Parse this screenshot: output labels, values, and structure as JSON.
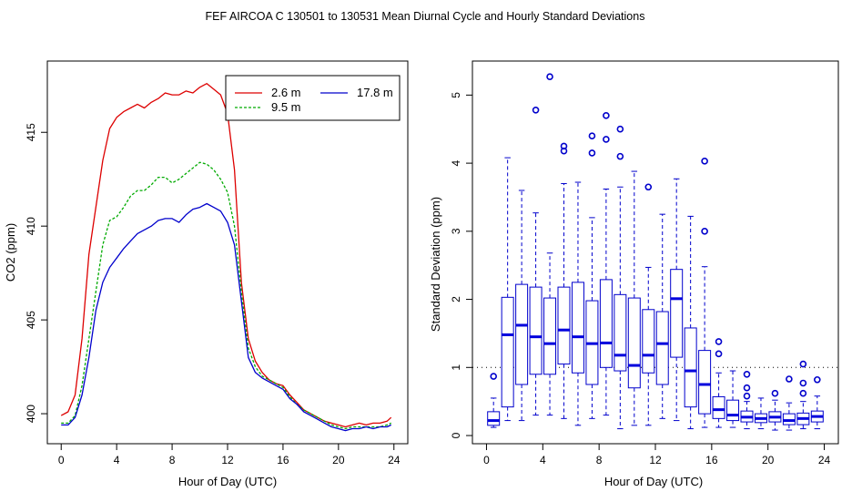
{
  "figure_title": "FEF   AIRCOA C   130501 to 130531   Mean Diurnal Cycle and Hourly Standard Deviations",
  "chart_data": [
    {
      "type": "line",
      "xlabel": "Hour of Day (UTC)",
      "ylabel": "CO2 (ppm)",
      "xlim": [
        -1,
        25
      ],
      "ylim": [
        398.4,
        418.8
      ],
      "xticks": [
        0,
        4,
        8,
        12,
        16,
        20,
        24
      ],
      "yticks": [
        400,
        405,
        410,
        415
      ],
      "legend_position": "top-right",
      "x": [
        0,
        0.5,
        1,
        1.5,
        2,
        2.5,
        3,
        3.5,
        4,
        4.5,
        5,
        5.5,
        6,
        6.5,
        7,
        7.5,
        8,
        8.5,
        9,
        9.5,
        10,
        10.5,
        11,
        11.5,
        12,
        12.5,
        13,
        13.5,
        14,
        14.5,
        15,
        15.5,
        16,
        16.5,
        17,
        17.5,
        18,
        18.5,
        19,
        19.5,
        20,
        20.5,
        21,
        21.5,
        22,
        22.5,
        23,
        23.5,
        23.8
      ],
      "series": [
        {
          "name": "2.6 m",
          "color": "#dd0000",
          "dash": "",
          "values": [
            399.9,
            400.1,
            401.0,
            404.0,
            408.5,
            411.0,
            413.5,
            415.2,
            415.8,
            416.1,
            416.3,
            416.5,
            416.3,
            416.6,
            416.8,
            417.1,
            417.0,
            417.0,
            417.2,
            417.1,
            417.4,
            417.6,
            417.3,
            417.0,
            416.0,
            413.0,
            407.0,
            404.0,
            402.8,
            402.2,
            401.8,
            401.6,
            401.5,
            401.0,
            400.6,
            400.2,
            400.0,
            399.8,
            399.6,
            399.5,
            399.4,
            399.3,
            399.4,
            399.5,
            399.4,
            399.5,
            399.5,
            399.6,
            399.8
          ]
        },
        {
          "name": "9.5 m",
          "color": "#00aa00",
          "dash": "3,2",
          "values": [
            399.5,
            399.5,
            399.9,
            401.5,
            404.0,
            406.5,
            409.0,
            410.3,
            410.5,
            411.0,
            411.6,
            411.9,
            411.9,
            412.2,
            412.6,
            412.6,
            412.3,
            412.5,
            412.8,
            413.1,
            413.4,
            413.3,
            413.0,
            412.5,
            411.8,
            410.0,
            406.5,
            403.5,
            402.5,
            402.0,
            401.8,
            401.6,
            401.4,
            400.9,
            400.5,
            400.2,
            400.0,
            399.8,
            399.6,
            399.4,
            399.3,
            399.2,
            399.3,
            399.3,
            399.3,
            399.3,
            399.3,
            399.4,
            399.5
          ]
        },
        {
          "name": "17.8 m",
          "color": "#0000cc",
          "dash": "",
          "values": [
            399.4,
            399.4,
            399.8,
            401.0,
            403.0,
            405.5,
            407.0,
            407.8,
            408.3,
            408.8,
            409.2,
            409.6,
            409.8,
            410.0,
            410.3,
            410.4,
            410.4,
            410.2,
            410.6,
            410.9,
            411.0,
            411.2,
            411.0,
            410.8,
            410.2,
            409.0,
            406.0,
            403.0,
            402.2,
            401.9,
            401.7,
            401.5,
            401.3,
            400.8,
            400.5,
            400.1,
            399.9,
            399.7,
            399.5,
            399.3,
            399.2,
            399.1,
            399.2,
            399.2,
            399.3,
            399.2,
            399.3,
            399.3,
            399.4
          ]
        }
      ]
    },
    {
      "type": "box",
      "xlabel": "Hour of Day (UTC)",
      "ylabel": "Standard Deviation (ppm)",
      "xlim": [
        -1,
        25
      ],
      "ylim": [
        -0.12,
        5.5
      ],
      "xticks": [
        0,
        4,
        8,
        12,
        16,
        20,
        24
      ],
      "yticks": [
        0,
        1,
        2,
        3,
        4,
        5
      ],
      "reference_line": 1,
      "box_color": "#0000cc",
      "median_color": "#0000dd",
      "boxes": [
        {
          "x": 0.5,
          "whisker_low": 0.12,
          "q1": 0.15,
          "median": 0.22,
          "q3": 0.35,
          "whisker_high": 0.55,
          "outliers": [
            0.87
          ]
        },
        {
          "x": 1.5,
          "whisker_low": 0.22,
          "q1": 0.42,
          "median": 1.48,
          "q3": 2.03,
          "whisker_high": 4.08,
          "outliers": []
        },
        {
          "x": 2.5,
          "whisker_low": 0.22,
          "q1": 0.75,
          "median": 1.62,
          "q3": 2.22,
          "whisker_high": 3.6,
          "outliers": []
        },
        {
          "x": 3.5,
          "whisker_low": 0.3,
          "q1": 0.9,
          "median": 1.45,
          "q3": 2.18,
          "whisker_high": 3.27,
          "outliers": [
            4.78
          ]
        },
        {
          "x": 4.5,
          "whisker_low": 0.3,
          "q1": 0.9,
          "median": 1.35,
          "q3": 2.02,
          "whisker_high": 2.68,
          "outliers": [
            5.27
          ]
        },
        {
          "x": 5.5,
          "whisker_low": 0.25,
          "q1": 1.05,
          "median": 1.55,
          "q3": 2.18,
          "whisker_high": 3.7,
          "outliers": [
            4.18,
            4.25
          ]
        },
        {
          "x": 6.5,
          "whisker_low": 0.15,
          "q1": 0.92,
          "median": 1.45,
          "q3": 2.25,
          "whisker_high": 3.72,
          "outliers": []
        },
        {
          "x": 7.5,
          "whisker_low": 0.25,
          "q1": 0.75,
          "median": 1.35,
          "q3": 1.98,
          "whisker_high": 3.2,
          "outliers": [
            4.15,
            4.4
          ]
        },
        {
          "x": 8.5,
          "whisker_low": 0.3,
          "q1": 1.0,
          "median": 1.36,
          "q3": 2.29,
          "whisker_high": 3.62,
          "outliers": [
            4.35,
            4.7
          ]
        },
        {
          "x": 9.5,
          "whisker_low": 0.1,
          "q1": 0.95,
          "median": 1.18,
          "q3": 2.07,
          "whisker_high": 3.65,
          "outliers": [
            4.1,
            4.5
          ]
        },
        {
          "x": 10.5,
          "whisker_low": 0.15,
          "q1": 0.7,
          "median": 1.03,
          "q3": 2.02,
          "whisker_high": 3.88,
          "outliers": []
        },
        {
          "x": 11.5,
          "whisker_low": 0.15,
          "q1": 0.92,
          "median": 1.18,
          "q3": 1.85,
          "whisker_high": 2.47,
          "outliers": [
            3.65
          ]
        },
        {
          "x": 12.5,
          "whisker_low": 0.25,
          "q1": 0.75,
          "median": 1.35,
          "q3": 1.82,
          "whisker_high": 3.25,
          "outliers": []
        },
        {
          "x": 13.5,
          "whisker_low": 0.22,
          "q1": 1.15,
          "median": 2.01,
          "q3": 2.44,
          "whisker_high": 3.77,
          "outliers": []
        },
        {
          "x": 14.5,
          "whisker_low": 0.1,
          "q1": 0.42,
          "median": 0.95,
          "q3": 1.58,
          "whisker_high": 3.22,
          "outliers": []
        },
        {
          "x": 15.5,
          "whisker_low": 0.12,
          "q1": 0.32,
          "median": 0.75,
          "q3": 1.25,
          "whisker_high": 2.48,
          "outliers": [
            3.0,
            4.03
          ]
        },
        {
          "x": 16.5,
          "whisker_low": 0.12,
          "q1": 0.25,
          "median": 0.38,
          "q3": 0.57,
          "whisker_high": 0.92,
          "outliers": [
            1.2,
            1.38
          ]
        },
        {
          "x": 17.5,
          "whisker_low": 0.12,
          "q1": 0.22,
          "median": 0.3,
          "q3": 0.52,
          "whisker_high": 0.95,
          "outliers": []
        },
        {
          "x": 18.5,
          "whisker_low": 0.1,
          "q1": 0.2,
          "median": 0.27,
          "q3": 0.36,
          "whisker_high": 0.5,
          "outliers": [
            0.58,
            0.7,
            0.9
          ]
        },
        {
          "x": 19.5,
          "whisker_low": 0.1,
          "q1": 0.19,
          "median": 0.25,
          "q3": 0.32,
          "whisker_high": 0.55,
          "outliers": []
        },
        {
          "x": 20.5,
          "whisker_low": 0.08,
          "q1": 0.2,
          "median": 0.27,
          "q3": 0.35,
          "whisker_high": 0.52,
          "outliers": [
            0.62
          ]
        },
        {
          "x": 21.5,
          "whisker_low": 0.08,
          "q1": 0.16,
          "median": 0.22,
          "q3": 0.32,
          "whisker_high": 0.48,
          "outliers": [
            0.83
          ]
        },
        {
          "x": 22.5,
          "whisker_low": 0.1,
          "q1": 0.16,
          "median": 0.25,
          "q3": 0.33,
          "whisker_high": 0.5,
          "outliers": [
            0.62,
            0.77,
            1.05
          ]
        },
        {
          "x": 23.5,
          "whisker_low": 0.1,
          "q1": 0.2,
          "median": 0.28,
          "q3": 0.36,
          "whisker_high": 0.58,
          "outliers": [
            0.82
          ]
        }
      ]
    }
  ]
}
